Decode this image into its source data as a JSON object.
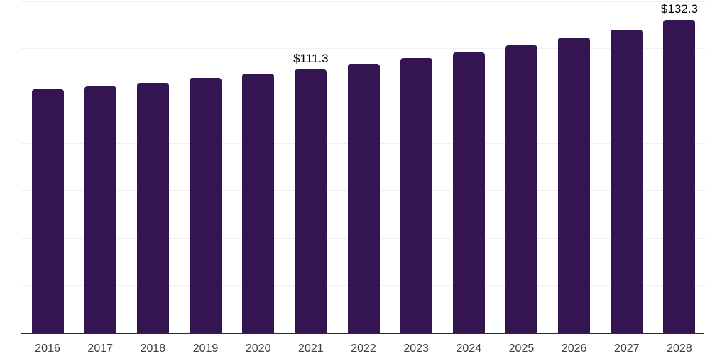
{
  "chart_data": {
    "type": "bar",
    "title": "",
    "xlabel": "",
    "ylabel": "",
    "categories": [
      "2016",
      "2017",
      "2018",
      "2019",
      "2020",
      "2021",
      "2022",
      "2023",
      "2024",
      "2025",
      "2026",
      "2027",
      "2028"
    ],
    "values": [
      103.0,
      104.1,
      105.5,
      107.6,
      109.4,
      111.3,
      113.8,
      116.2,
      118.6,
      121.5,
      124.6,
      128.0,
      132.3
    ],
    "data_labels": [
      "",
      "",
      "",
      "",
      "",
      "$111.3",
      "",
      "",
      "",
      "",
      "",
      "",
      "$132.3"
    ],
    "ylim": [
      0,
      140
    ],
    "grid_step": 20,
    "grid_on": true,
    "y_tick_labels_visible": false,
    "legend": "none",
    "colors": {
      "bar": "#341551",
      "axis_line": "#2d2d2d",
      "gridline": "#f0f0f3",
      "tick_label": "#3d3d3d",
      "data_label": "#000000",
      "background": "#ffffff"
    }
  }
}
